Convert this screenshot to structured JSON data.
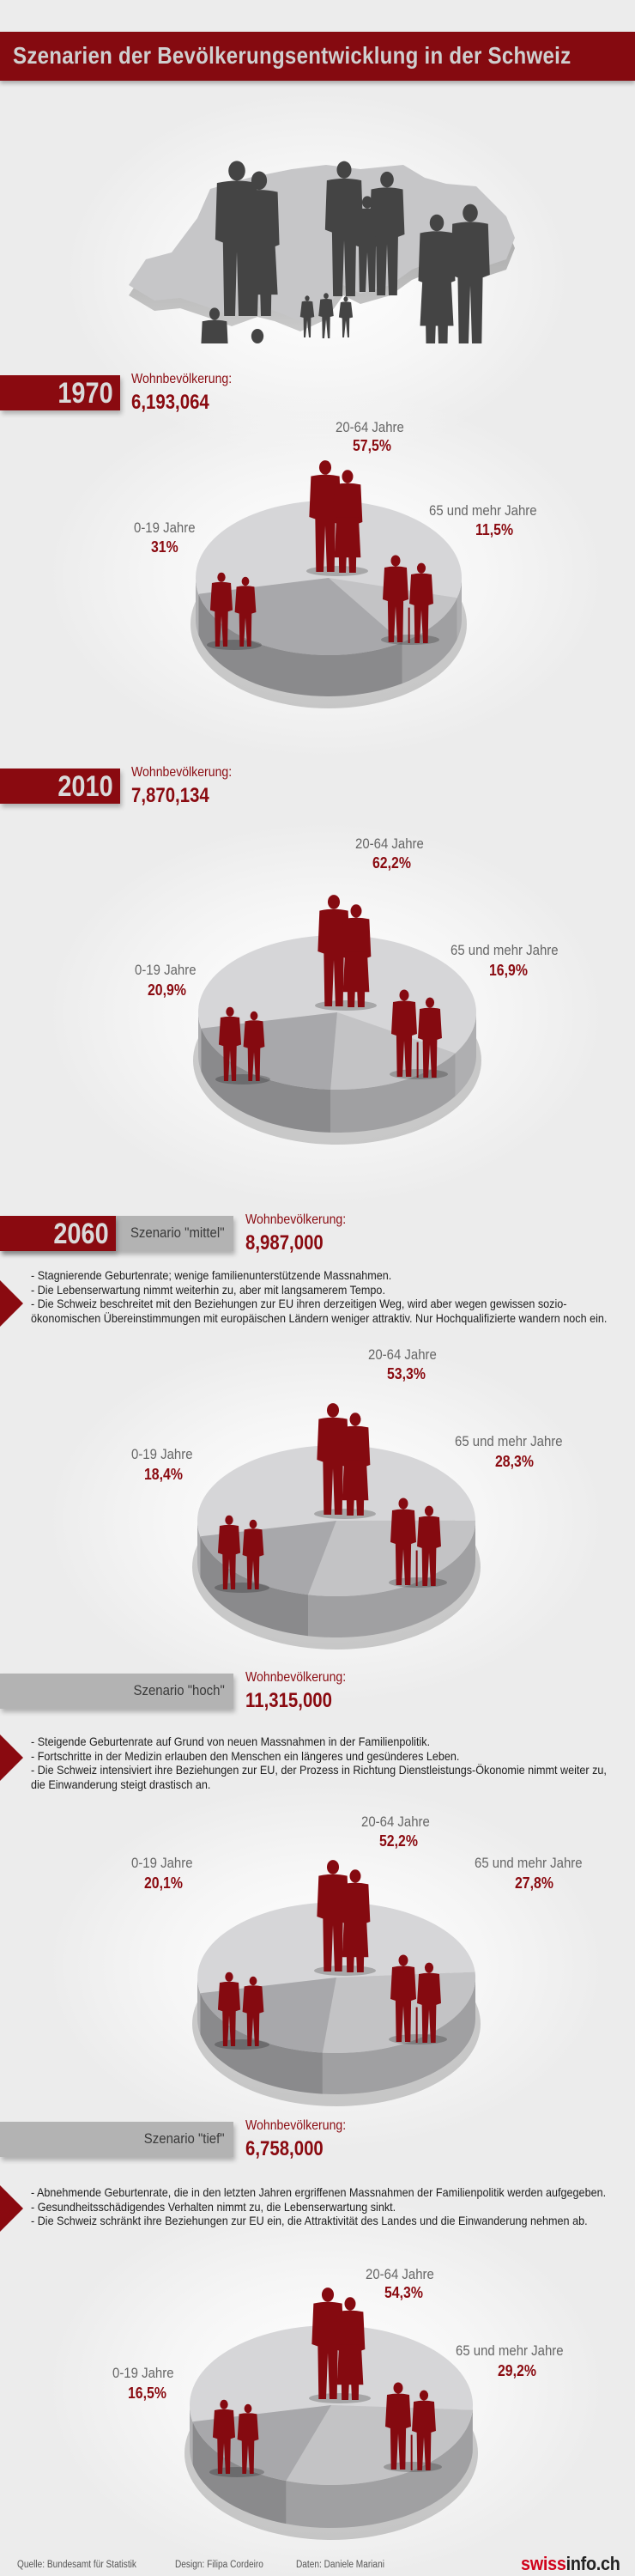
{
  "title": "Szenarien der Bevölkerungsentwicklung in der Schweiz",
  "colors": {
    "brand_red": "#850a10",
    "text_red": "#8a0a10",
    "slice_0_19": "#a8a8ab",
    "slice_20_64": "#d6d6d8",
    "slice_65_plus": "#c3c3c5",
    "silhouette_red": "#850a10",
    "silhouette_gray": "#444444"
  },
  "sections": [
    {
      "year": "1970",
      "pop_label": "Wohnbevölkerung:",
      "population": "6,193,064"
    },
    {
      "year": "2010",
      "pop_label": "Wohnbevölkerung:",
      "population": "7,870,134"
    },
    {
      "year": "2060",
      "scenario": "Szenario \"mittel\"",
      "pop_label": "Wohnbevölkerung:",
      "population": "8,987,000",
      "notes": [
        "- Stagnierende Geburtenrate; wenige familienunterstützende Massnahmen.",
        "- Die Lebenserwartung nimmt weiterhin zu, aber mit langsamerem Tempo.",
        "- Die Schweiz beschreitet mit den Beziehungen zur EU ihren derzeitigen Weg, wird aber wegen gewissen sozio-ökonomischen Übereinstimmungen mit europäischen Ländern weniger attraktiv. Nur Hochqualifizierte wandern noch ein."
      ]
    },
    {
      "scenario": "Szenario \"hoch\"",
      "pop_label": "Wohnbevölkerung:",
      "population": "11,315,000",
      "notes": [
        "- Steigende Geburtenrate auf Grund von neuen Massnahmen in der Familienpolitik.",
        "- Fortschritte in der Medizin erlauben den Menschen ein längeres und gesünderes Leben.",
        "- Die Schweiz intensiviert ihre Beziehungen zur EU, der Prozess in Richtung Dienstleistungs-Ökonomie nimmt weiter zu, die Einwanderung steigt drastisch an."
      ]
    },
    {
      "scenario": "Szenario \"tief\"",
      "pop_label": "Wohnbevölkerung:",
      "population": "6,758,000",
      "notes": [
        "- Abnehmende Geburtenrate, die in den letzten Jahren ergriffenen Massnahmen der Familienpolitik werden aufgegeben.",
        "- Gesundheitsschädigendes Verhalten nimmt zu, die Lebenserwartung sinkt.",
        "- Die Schweiz schränkt ihre Beziehungen zur EU ein, die Attraktivität des Landes und die Einwanderung nehmen ab."
      ]
    }
  ],
  "chart_data": [
    {
      "type": "pie",
      "categories": [
        "20-64 Jahre",
        "65 und mehr Jahre",
        "0-19 Jahre"
      ],
      "values": [
        57.5,
        11.5,
        31
      ],
      "labels": [
        "57,5%",
        "11,5%",
        "31%"
      ]
    },
    {
      "type": "pie",
      "categories": [
        "20-64 Jahre",
        "65 und mehr Jahre",
        "0-19 Jahre"
      ],
      "values": [
        62.2,
        16.9,
        20.9
      ],
      "labels": [
        "62,2%",
        "16,9%",
        "20,9%"
      ]
    },
    {
      "type": "pie",
      "categories": [
        "20-64 Jahre",
        "65 und mehr Jahre",
        "0-19 Jahre"
      ],
      "values": [
        53.3,
        28.3,
        18.4
      ],
      "labels": [
        "53,3%",
        "28,3%",
        "18,4%"
      ]
    },
    {
      "type": "pie",
      "categories": [
        "20-64 Jahre",
        "65 und mehr Jahre",
        "0-19 Jahre"
      ],
      "values": [
        52.2,
        27.8,
        20.1
      ],
      "labels": [
        "52,2%",
        "27,8%",
        "20,1%"
      ]
    },
    {
      "type": "pie",
      "categories": [
        "20-64 Jahre",
        "65 und mehr Jahre",
        "0-19 Jahre"
      ],
      "values": [
        54.3,
        29.2,
        16.5
      ],
      "labels": [
        "54,3%",
        "29,2%",
        "16,5%"
      ]
    }
  ],
  "footer": {
    "source": "Quelle: Bundesamt für Statistik",
    "design": "Design: Filipa Cordeiro",
    "data": "Daten: Daniele Mariani",
    "logo_red": "swiss",
    "logo_dark": "info.ch"
  }
}
